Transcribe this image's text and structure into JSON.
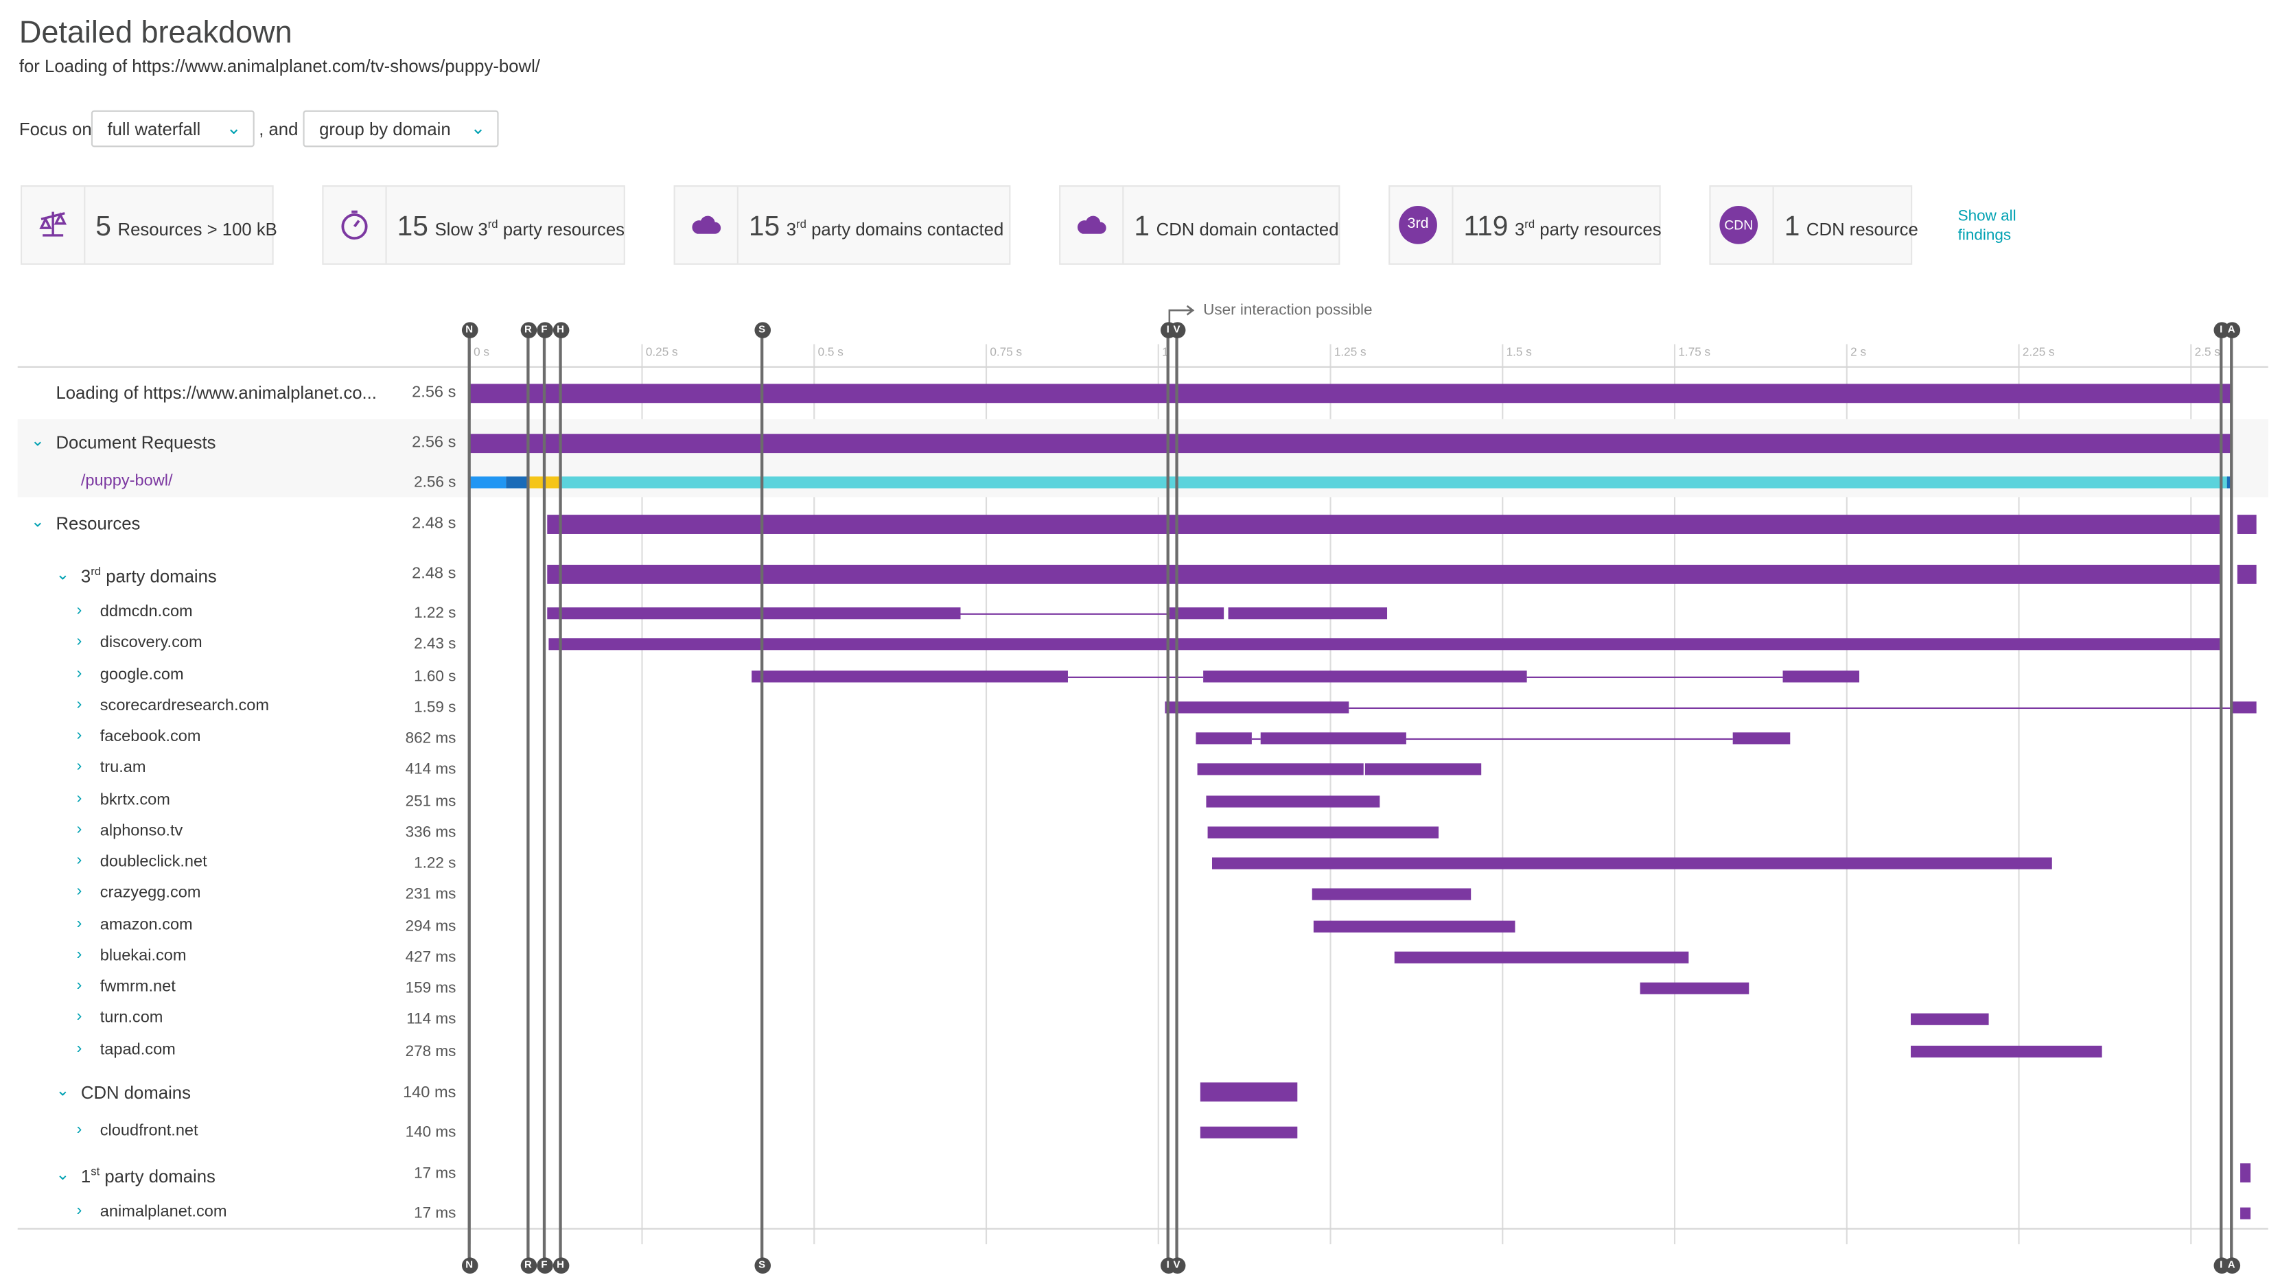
{
  "header": {
    "title": "Detailed breakdown",
    "subtitle": "for Loading of https://www.animalplanet.com/tv-shows/puppy-bowl/"
  },
  "controls": {
    "focus_label": "Focus on",
    "focus_value": "full waterfall",
    "and_label": ", and",
    "group_value": "group by domain"
  },
  "findings": [
    {
      "count": "5",
      "label": "Resources > 100 kB",
      "icon": "scale-icon"
    },
    {
      "count": "15",
      "label_pre": "Slow 3",
      "label_sup": "rd",
      "label_post": " party resources",
      "icon": "stopwatch-icon"
    },
    {
      "count": "15",
      "label_pre": "3",
      "label_sup": "rd",
      "label_post": " party domains contacted",
      "icon": "cloud-icon"
    },
    {
      "count": "1",
      "label": "CDN domain contacted",
      "icon": "cloud-icon"
    },
    {
      "count": "119",
      "label_pre": "3",
      "label_sup": "rd",
      "label_post": " party resources",
      "icon": "3rd-badge",
      "badge": "3rd"
    },
    {
      "count": "1",
      "label": "CDN resource",
      "icon": "cdn-badge",
      "badge": "CDN"
    }
  ],
  "show_all": {
    "line1": "Show all",
    "line2": "findings"
  },
  "timeline": {
    "user_interaction_label": "User interaction possible",
    "ticks": [
      "0 s",
      "0.25 s",
      "0.5 s",
      "0.75 s",
      "1",
      "1.25 s",
      "1.5 s",
      "1.75 s",
      "2 s",
      "2.25 s",
      "2.5 s"
    ],
    "markers": [
      "N",
      "R",
      "F",
      "H",
      "S",
      "I",
      "V",
      "I",
      "A"
    ]
  },
  "rows": {
    "loading": {
      "label": "Loading of https://www.animalplanet.co...",
      "duration": "2.56 s"
    },
    "document_requests": {
      "label": "Document Requests",
      "duration": "2.56 s"
    },
    "puppy_bowl": {
      "label": "/puppy-bowl/",
      "duration": "2.56 s"
    },
    "resources": {
      "label": "Resources",
      "duration": "2.48 s"
    },
    "third_party": {
      "label_pre": "3",
      "label_sup": "rd",
      "label_post": " party domains",
      "duration": "2.48 s"
    },
    "domains": [
      {
        "name": "ddmcdn.com",
        "duration": "1.22 s"
      },
      {
        "name": "discovery.com",
        "duration": "2.43 s"
      },
      {
        "name": "google.com",
        "duration": "1.60 s"
      },
      {
        "name": "scorecardresearch.com",
        "duration": "1.59 s"
      },
      {
        "name": "facebook.com",
        "duration": "862 ms"
      },
      {
        "name": "tru.am",
        "duration": "414 ms"
      },
      {
        "name": "bkrtx.com",
        "duration": "251 ms"
      },
      {
        "name": "alphonso.tv",
        "duration": "336 ms"
      },
      {
        "name": "doubleclick.net",
        "duration": "1.22 s"
      },
      {
        "name": "crazyegg.com",
        "duration": "231 ms"
      },
      {
        "name": "amazon.com",
        "duration": "294 ms"
      },
      {
        "name": "bluekai.com",
        "duration": "427 ms"
      },
      {
        "name": "fwmrm.net",
        "duration": "159 ms"
      },
      {
        "name": "turn.com",
        "duration": "114 ms"
      },
      {
        "name": "tapad.com",
        "duration": "278 ms"
      }
    ],
    "cdn": {
      "label": "CDN domains",
      "duration": "140 ms"
    },
    "cloudfront": {
      "label": "cloudfront.net",
      "duration": "140 ms"
    },
    "first_party": {
      "label_pre": "1",
      "label_sup": "st",
      "label_post": " party domains",
      "duration": "17 ms"
    },
    "animalplanet": {
      "label": "animalplanet.com",
      "duration": "17 ms"
    }
  },
  "colors": {
    "bar": "#7c38a1",
    "accent": "#00a1b2",
    "marker": "#4d4d4d",
    "dns": "#2196f3",
    "connect": "#1a6bb8",
    "ssl": "#f5c518",
    "download": "#5bd3dc"
  }
}
